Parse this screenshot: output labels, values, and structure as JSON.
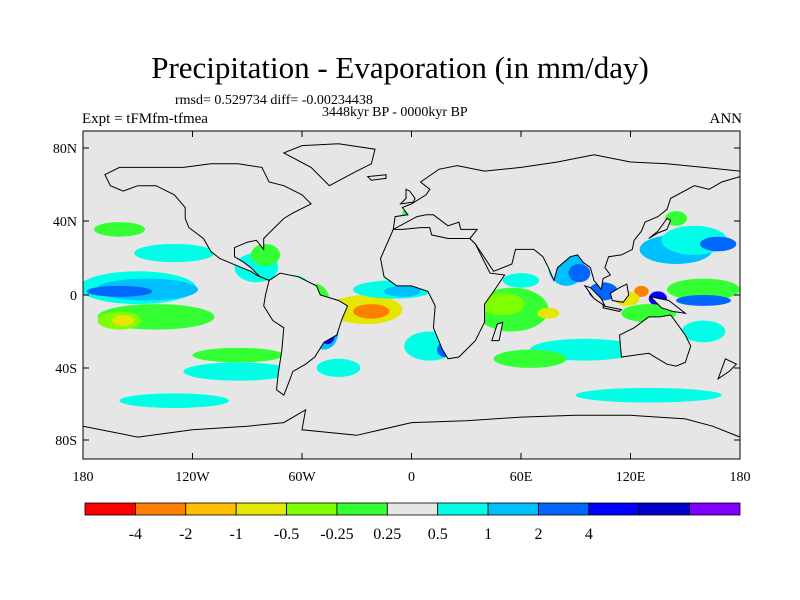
{
  "title": "Precipitation - Evaporation (in mm/day)",
  "stats_label": "rmsd= 0.529734 diff= -0.00234438",
  "time_label": "3448kyr BP - 0000kyr BP",
  "expt_label": "Expt = tFMfm-tfmea",
  "period_label": "ANN",
  "map": {
    "background_color": "#e6e6e6",
    "x_ticks": [
      "180",
      "120W",
      "60W",
      "0",
      "60E",
      "120E",
      "180"
    ],
    "y_ticks": [
      "80N",
      "40N",
      "0",
      "40S",
      "80S"
    ]
  },
  "colorbar": {
    "colors": [
      "#ff0000",
      "#ff7f00",
      "#ffbf00",
      "#e6e600",
      "#80ff00",
      "#33ff33",
      "#e6e6e6",
      "#00ffe6",
      "#00bfff",
      "#0066ff",
      "#0000ff",
      "#0000c8",
      "#8000ff"
    ],
    "labels": [
      "-4",
      "-2",
      "-1",
      "-0.5",
      "-0.25",
      "0.25",
      "0.5",
      "1",
      "2",
      "4"
    ]
  },
  "anomalies": [
    {
      "color": "#00ffe6",
      "lon": -150,
      "lat": 4,
      "rx": 32,
      "ry": 9
    },
    {
      "color": "#00bfff",
      "lon": -145,
      "lat": 3,
      "rx": 28,
      "ry": 6
    },
    {
      "color": "#0066ff",
      "lon": -160,
      "lat": 2,
      "rx": 18,
      "ry": 3
    },
    {
      "color": "#33ff33",
      "lon": -140,
      "lat": -12,
      "rx": 32,
      "ry": 7
    },
    {
      "color": "#80ff00",
      "lon": -160,
      "lat": -14,
      "rx": 12,
      "ry": 5
    },
    {
      "color": "#e6e600",
      "lon": -158,
      "lat": -14,
      "rx": 6,
      "ry": 3
    },
    {
      "color": "#00ffe6",
      "lon": -130,
      "lat": 23,
      "rx": 22,
      "ry": 5
    },
    {
      "color": "#33ff33",
      "lon": -160,
      "lat": 36,
      "rx": 14,
      "ry": 4
    },
    {
      "color": "#00ffe6",
      "lon": -95,
      "lat": -42,
      "rx": 30,
      "ry": 5
    },
    {
      "color": "#33ff33",
      "lon": -95,
      "lat": -33,
      "rx": 25,
      "ry": 4
    },
    {
      "color": "#00ffe6",
      "lon": -85,
      "lat": 15,
      "rx": 12,
      "ry": 8
    },
    {
      "color": "#33ff33",
      "lon": -80,
      "lat": 22,
      "rx": 8,
      "ry": 6
    },
    {
      "color": "#00ffe6",
      "lon": -65,
      "lat": 3,
      "rx": 10,
      "ry": 8
    },
    {
      "color": "#33ff33",
      "lon": -52,
      "lat": -8,
      "rx": 8,
      "ry": 14
    },
    {
      "color": "#0066ff",
      "lon": -52,
      "lat": -15,
      "rx": 6,
      "ry": 8
    },
    {
      "color": "#00bfff",
      "lon": -48,
      "lat": -20,
      "rx": 8,
      "ry": 10
    },
    {
      "color": "#0000ff",
      "lon": -46,
      "lat": -22,
      "rx": 4,
      "ry": 5
    },
    {
      "color": "#ff7f00",
      "lon": -30,
      "lat": -6,
      "rx": 14,
      "ry": 5
    },
    {
      "color": "#e6e600",
      "lon": -25,
      "lat": -8,
      "rx": 20,
      "ry": 8
    },
    {
      "color": "#ff7f00",
      "lon": -22,
      "lat": -9,
      "rx": 10,
      "ry": 4
    },
    {
      "color": "#00ffe6",
      "lon": -40,
      "lat": -40,
      "rx": 12,
      "ry": 5
    },
    {
      "color": "#00ffe6",
      "lon": -10,
      "lat": 3,
      "rx": 22,
      "ry": 5
    },
    {
      "color": "#00bfff",
      "lon": -5,
      "lat": 2,
      "rx": 10,
      "ry": 3
    },
    {
      "color": "#00ffe6",
      "lon": 10,
      "lat": -28,
      "rx": 14,
      "ry": 8
    },
    {
      "color": "#0066ff",
      "lon": 18,
      "lat": -30,
      "rx": 4,
      "ry": 4
    },
    {
      "color": "#33ff33",
      "lon": 55,
      "lat": -8,
      "rx": 20,
      "ry": 12
    },
    {
      "color": "#80ff00",
      "lon": 50,
      "lat": -5,
      "rx": 12,
      "ry": 6
    },
    {
      "color": "#e6e600",
      "lon": 75,
      "lat": -10,
      "rx": 6,
      "ry": 3
    },
    {
      "color": "#00bfff",
      "lon": 38,
      "lat": 3,
      "rx": 6,
      "ry": 6
    },
    {
      "color": "#00ffe6",
      "lon": 60,
      "lat": 8,
      "rx": 10,
      "ry": 4
    },
    {
      "color": "#33ff33",
      "lon": 20,
      "lat": 12,
      "rx": 12,
      "ry": 4
    },
    {
      "color": "#00ffe6",
      "lon": 95,
      "lat": -30,
      "rx": 30,
      "ry": 6
    },
    {
      "color": "#33ff33",
      "lon": 65,
      "lat": -35,
      "rx": 20,
      "ry": 5
    },
    {
      "color": "#00bfff",
      "lon": 85,
      "lat": 15,
      "rx": 10,
      "ry": 10
    },
    {
      "color": "#0066ff",
      "lon": 92,
      "lat": 12,
      "rx": 6,
      "ry": 5
    },
    {
      "color": "#0066ff",
      "lon": 105,
      "lat": 2,
      "rx": 8,
      "ry": 5
    },
    {
      "color": "#ff7f00",
      "lon": 126,
      "lat": 2,
      "rx": 4,
      "ry": 3
    },
    {
      "color": "#e6e600",
      "lon": 118,
      "lat": -2,
      "rx": 7,
      "ry": 4
    },
    {
      "color": "#0000ff",
      "lon": 135,
      "lat": -2,
      "rx": 5,
      "ry": 4
    },
    {
      "color": "#33ff33",
      "lon": 130,
      "lat": -10,
      "rx": 15,
      "ry": 5
    },
    {
      "color": "#00bfff",
      "lon": 145,
      "lat": 25,
      "rx": 20,
      "ry": 8
    },
    {
      "color": "#00ffe6",
      "lon": 155,
      "lat": 30,
      "rx": 18,
      "ry": 8
    },
    {
      "color": "#0066ff",
      "lon": 168,
      "lat": 28,
      "rx": 10,
      "ry": 4
    },
    {
      "color": "#33ff33",
      "lon": 160,
      "lat": 3,
      "rx": 20,
      "ry": 6
    },
    {
      "color": "#0066ff",
      "lon": 160,
      "lat": -3,
      "rx": 15,
      "ry": 3
    },
    {
      "color": "#00ffe6",
      "lon": 160,
      "lat": -20,
      "rx": 12,
      "ry": 6
    },
    {
      "color": "#00ffe6",
      "lon": 130,
      "lat": -55,
      "rx": 40,
      "ry": 4
    },
    {
      "color": "#00ffe6",
      "lon": -130,
      "lat": -58,
      "rx": 30,
      "ry": 4
    },
    {
      "color": "#33ff33",
      "lon": 145,
      "lat": 42,
      "rx": 6,
      "ry": 4
    },
    {
      "color": "#33ff33",
      "lon": 0,
      "lat": 45,
      "rx": 5,
      "ry": 3
    }
  ],
  "land": [
    [
      [
        -168,
        66
      ],
      [
        -160,
        70
      ],
      [
        -140,
        70
      ],
      [
        -125,
        70
      ],
      [
        -110,
        72
      ],
      [
        -95,
        72
      ],
      [
        -82,
        70
      ],
      [
        -78,
        62
      ],
      [
        -70,
        60
      ],
      [
        -60,
        55
      ],
      [
        -55,
        50
      ],
      [
        -65,
        45
      ],
      [
        -70,
        42
      ],
      [
        -76,
        36
      ],
      [
        -81,
        31
      ],
      [
        -81,
        25
      ],
      [
        -85,
        30
      ],
      [
        -90,
        29
      ],
      [
        -97,
        26
      ],
      [
        -97,
        21
      ],
      [
        -92,
        18
      ],
      [
        -88,
        15
      ],
      [
        -83,
        10
      ],
      [
        -78,
        8
      ],
      [
        -85,
        11
      ],
      [
        -88,
        13
      ],
      [
        -93,
        15
      ],
      [
        -105,
        20
      ],
      [
        -110,
        24
      ],
      [
        -114,
        31
      ],
      [
        -118,
        34
      ],
      [
        -122,
        37
      ],
      [
        -124,
        42
      ],
      [
        -124,
        48
      ],
      [
        -130,
        55
      ],
      [
        -140,
        60
      ],
      [
        -150,
        60
      ],
      [
        -158,
        57
      ],
      [
        -165,
        60
      ],
      [
        -168,
        66
      ]
    ],
    [
      [
        -78,
        8
      ],
      [
        -72,
        12
      ],
      [
        -62,
        10
      ],
      [
        -52,
        5
      ],
      [
        -50,
        0
      ],
      [
        -40,
        -3
      ],
      [
        -35,
        -6
      ],
      [
        -38,
        -13
      ],
      [
        -41,
        -22
      ],
      [
        -48,
        -26
      ],
      [
        -53,
        -34
      ],
      [
        -58,
        -38
      ],
      [
        -65,
        -42
      ],
      [
        -68,
        -50
      ],
      [
        -70,
        -55
      ],
      [
        -74,
        -52
      ],
      [
        -73,
        -43
      ],
      [
        -71,
        -30
      ],
      [
        -70,
        -18
      ],
      [
        -76,
        -14
      ],
      [
        -81,
        -6
      ],
      [
        -80,
        0
      ],
      [
        -78,
        8
      ]
    ],
    [
      [
        -45,
        60
      ],
      [
        -30,
        68
      ],
      [
        -22,
        72
      ],
      [
        -20,
        80
      ],
      [
        -40,
        83
      ],
      [
        -60,
        82
      ],
      [
        -70,
        78
      ],
      [
        -55,
        70
      ],
      [
        -45,
        60
      ]
    ],
    [
      [
        -10,
        36
      ],
      [
        -5,
        36
      ],
      [
        5,
        37
      ],
      [
        10,
        37
      ],
      [
        11,
        33
      ],
      [
        20,
        31
      ],
      [
        32,
        31
      ],
      [
        35,
        28
      ],
      [
        43,
        12
      ],
      [
        51,
        11
      ],
      [
        45,
        2
      ],
      [
        40,
        -5
      ],
      [
        40,
        -15
      ],
      [
        35,
        -25
      ],
      [
        26,
        -34
      ],
      [
        20,
        -35
      ],
      [
        17,
        -30
      ],
      [
        12,
        -18
      ],
      [
        13,
        -6
      ],
      [
        9,
        2
      ],
      [
        0,
        5
      ],
      [
        -8,
        5
      ],
      [
        -15,
        10
      ],
      [
        -17,
        20
      ],
      [
        -10,
        36
      ]
    ],
    [
      [
        -10,
        36
      ],
      [
        -9,
        43
      ],
      [
        -2,
        44
      ],
      [
        -5,
        48
      ],
      [
        0,
        50
      ],
      [
        8,
        55
      ],
      [
        10,
        58
      ],
      [
        5,
        62
      ],
      [
        15,
        69
      ],
      [
        25,
        71
      ],
      [
        40,
        68
      ],
      [
        60,
        70
      ],
      [
        80,
        73
      ],
      [
        100,
        77
      ],
      [
        120,
        73
      ],
      [
        140,
        72
      ],
      [
        160,
        70
      ],
      [
        180,
        68
      ],
      [
        180,
        65
      ],
      [
        170,
        62
      ],
      [
        163,
        58
      ],
      [
        155,
        60
      ],
      [
        142,
        53
      ],
      [
        140,
        47
      ],
      [
        135,
        43
      ],
      [
        128,
        40
      ],
      [
        126,
        35
      ],
      [
        122,
        30
      ],
      [
        121,
        25
      ],
      [
        115,
        22
      ],
      [
        108,
        21
      ],
      [
        106,
        15
      ],
      [
        109,
        11
      ],
      [
        105,
        9
      ],
      [
        104,
        3
      ],
      [
        100,
        8
      ],
      [
        98,
        15
      ],
      [
        94,
        18
      ],
      [
        91,
        22
      ],
      [
        87,
        21
      ],
      [
        80,
        15
      ],
      [
        78,
        8
      ],
      [
        75,
        15
      ],
      [
        72,
        21
      ],
      [
        67,
        25
      ],
      [
        57,
        25
      ],
      [
        55,
        17
      ],
      [
        45,
        13
      ],
      [
        35,
        28
      ],
      [
        32,
        31
      ],
      [
        36,
        36
      ],
      [
        27,
        36
      ],
      [
        26,
        40
      ],
      [
        20,
        38
      ],
      [
        12,
        44
      ],
      [
        8,
        44
      ],
      [
        3,
        43
      ],
      [
        -10,
        36
      ]
    ],
    [
      [
        114,
        -22
      ],
      [
        122,
        -18
      ],
      [
        130,
        -12
      ],
      [
        136,
        -12
      ],
      [
        142,
        -11
      ],
      [
        145,
        -15
      ],
      [
        150,
        -22
      ],
      [
        153,
        -28
      ],
      [
        150,
        -37
      ],
      [
        145,
        -39
      ],
      [
        140,
        -38
      ],
      [
        135,
        -35
      ],
      [
        130,
        -32
      ],
      [
        115,
        -34
      ],
      [
        114,
        -22
      ]
    ],
    [
      [
        -180,
        -72
      ],
      [
        -150,
        -78
      ],
      [
        -120,
        -74
      ],
      [
        -90,
        -72
      ],
      [
        -70,
        -70
      ],
      [
        -58,
        -63
      ],
      [
        -60,
        -74
      ],
      [
        -30,
        -77
      ],
      [
        0,
        -70
      ],
      [
        30,
        -69
      ],
      [
        60,
        -67
      ],
      [
        90,
        -66
      ],
      [
        120,
        -66
      ],
      [
        150,
        -68
      ],
      [
        165,
        -72
      ],
      [
        180,
        -78
      ],
      [
        180,
        -90
      ],
      [
        -180,
        -90
      ]
    ],
    [
      [
        95,
        5
      ],
      [
        98,
        4
      ],
      [
        104,
        -2
      ],
      [
        106,
        -6
      ],
      [
        100,
        -2
      ],
      [
        95,
        5
      ]
    ],
    [
      [
        109,
        1
      ],
      [
        114,
        4
      ],
      [
        118,
        6
      ],
      [
        119,
        0
      ],
      [
        116,
        -4
      ],
      [
        110,
        -3
      ],
      [
        109,
        1
      ]
    ],
    [
      [
        105,
        -6
      ],
      [
        115,
        -8
      ],
      [
        114,
        -9
      ],
      [
        105,
        -7
      ],
      [
        105,
        -6
      ]
    ],
    [
      [
        131,
        -1
      ],
      [
        141,
        -3
      ],
      [
        150,
        -10
      ],
      [
        143,
        -9
      ],
      [
        137,
        -7
      ],
      [
        131,
        -1
      ]
    ],
    [
      [
        130,
        31
      ],
      [
        135,
        34
      ],
      [
        140,
        36
      ],
      [
        142,
        41
      ],
      [
        140,
        42
      ],
      [
        135,
        35
      ],
      [
        130,
        31
      ]
    ],
    [
      [
        -6,
        50
      ],
      [
        -3,
        53
      ],
      [
        -3,
        58
      ],
      [
        -1,
        57
      ],
      [
        2,
        53
      ],
      [
        1,
        51
      ],
      [
        -6,
        50
      ]
    ],
    [
      [
        44,
        -25
      ],
      [
        47,
        -16
      ],
      [
        50,
        -15
      ],
      [
        48,
        -25
      ],
      [
        44,
        -25
      ]
    ],
    [
      [
        172,
        -35
      ],
      [
        178,
        -38
      ],
      [
        174,
        -42
      ],
      [
        168,
        -46
      ],
      [
        172,
        -35
      ]
    ],
    [
      [
        -24,
        65
      ],
      [
        -14,
        66
      ],
      [
        -14,
        64
      ],
      [
        -22,
        63
      ],
      [
        -24,
        65
      ]
    ]
  ]
}
